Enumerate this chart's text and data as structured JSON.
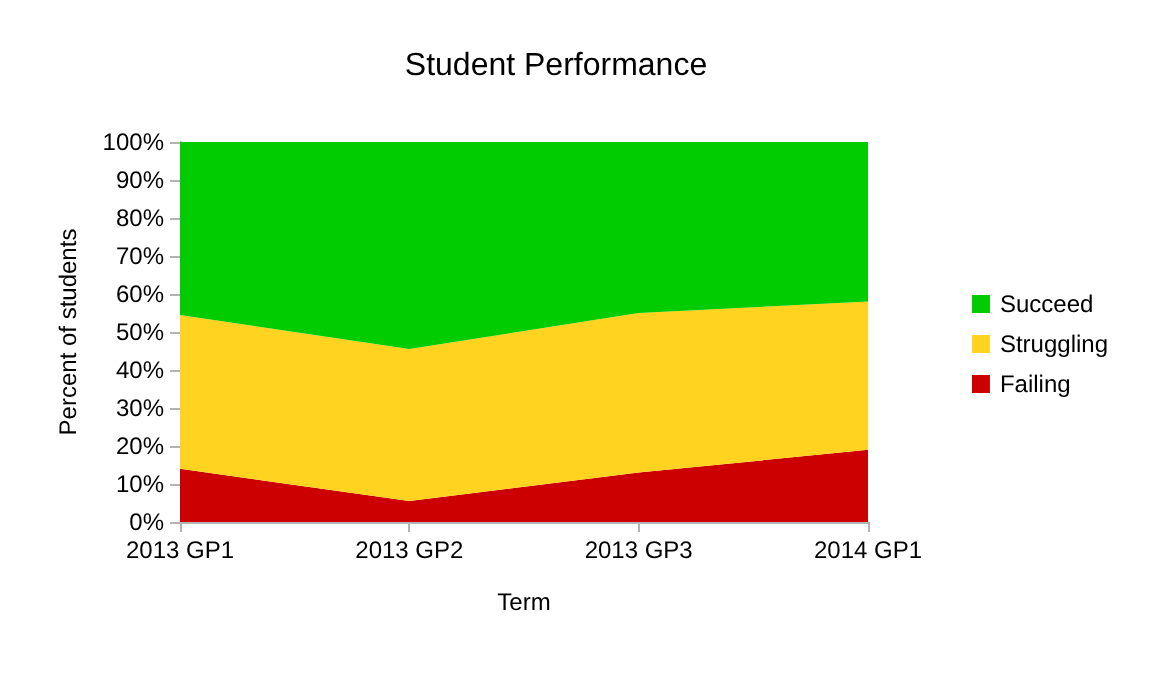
{
  "chart_data": {
    "type": "area",
    "stacked": true,
    "title": "Student Performance",
    "xlabel": "Term",
    "ylabel": "Percent of students",
    "categories": [
      "2013 GP1",
      "2013 GP2",
      "2013 GP3",
      "2014 GP1"
    ],
    "series": [
      {
        "name": "Failing",
        "color": "#cc0000",
        "values": [
          14,
          5.5,
          13,
          19
        ]
      },
      {
        "name": "Struggling",
        "color": "#ffd320",
        "values": [
          40.5,
          40,
          42,
          39
        ]
      },
      {
        "name": "Succeed",
        "color": "#00cc00",
        "values": [
          45.5,
          54.5,
          45,
          42
        ]
      }
    ],
    "ylim": [
      0,
      100
    ],
    "yticks": [
      {
        "value": 0,
        "label": "0%"
      },
      {
        "value": 10,
        "label": "10%"
      },
      {
        "value": 20,
        "label": "20%"
      },
      {
        "value": 30,
        "label": "30%"
      },
      {
        "value": 40,
        "label": "40%"
      },
      {
        "value": 50,
        "label": "50%"
      },
      {
        "value": 60,
        "label": "60%"
      },
      {
        "value": 70,
        "label": "70%"
      },
      {
        "value": 80,
        "label": "80%"
      },
      {
        "value": 90,
        "label": "90%"
      },
      {
        "value": 100,
        "label": "100%"
      }
    ],
    "grid": false,
    "legend": "right"
  }
}
